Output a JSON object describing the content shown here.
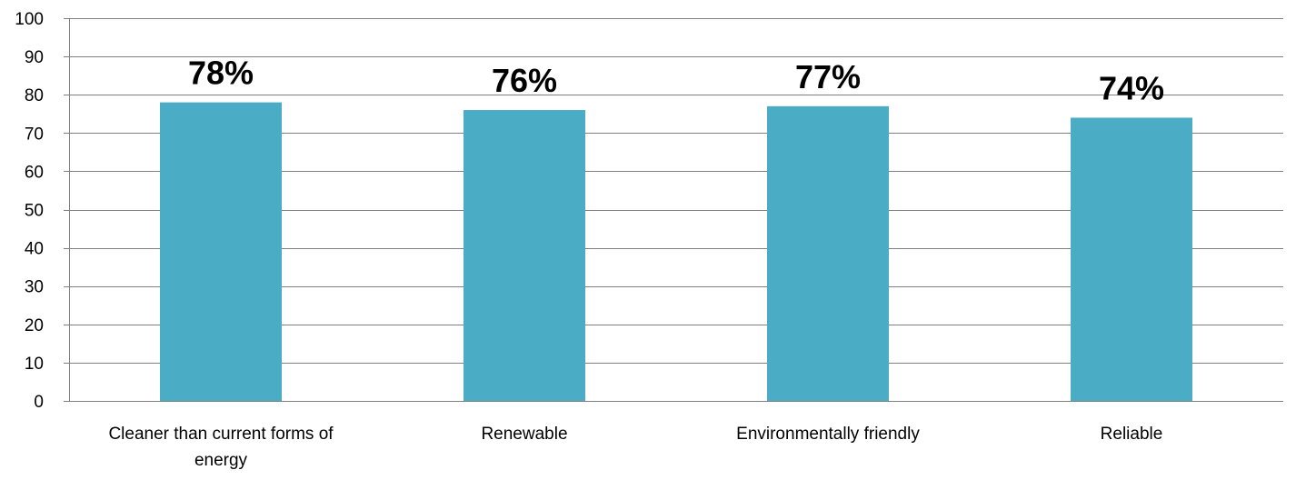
{
  "chart_data": {
    "type": "bar",
    "categories": [
      [
        "Cleaner than current forms of",
        "energy"
      ],
      [
        "Renewable"
      ],
      [
        "Environmentally friendly"
      ],
      [
        "Reliable"
      ]
    ],
    "values": [
      78,
      76,
      77,
      74
    ],
    "data_labels": [
      "78%",
      "76%",
      "77%",
      "74%"
    ],
    "yticks": [
      "0",
      "10",
      "20",
      "30",
      "40",
      "50",
      "60",
      "70",
      "80",
      "90",
      "100"
    ],
    "ylim": [
      0,
      100
    ],
    "grid": true,
    "bar_color": "#4BACC6"
  }
}
